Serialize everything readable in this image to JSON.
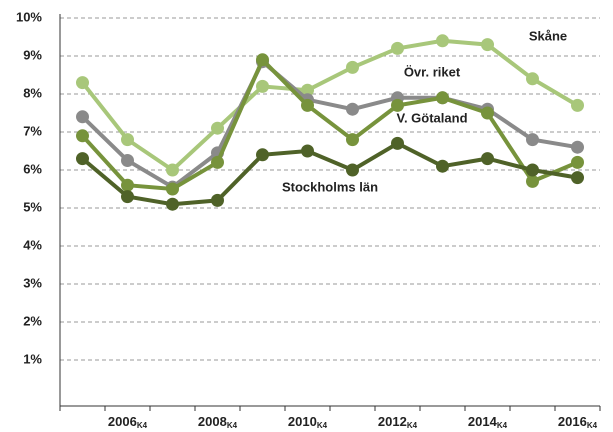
{
  "chart_data": {
    "type": "line",
    "categories": [
      null,
      "2006",
      null,
      "2008",
      null,
      "2010",
      null,
      "2012",
      null,
      "2014",
      null,
      "2016"
    ],
    "category_sub": "K4",
    "ylim": [
      0,
      10
    ],
    "yticks": [
      {
        "value": 1,
        "label": "1%"
      },
      {
        "value": 2,
        "label": "2%"
      },
      {
        "value": 3,
        "label": "3%"
      },
      {
        "value": 4,
        "label": "4%"
      },
      {
        "value": 5,
        "label": "5%"
      },
      {
        "value": 6,
        "label": "6%"
      },
      {
        "value": 7,
        "label": "7%"
      },
      {
        "value": 8,
        "label": "8%"
      },
      {
        "value": 9,
        "label": "9%"
      },
      {
        "value": 10,
        "label": "10%"
      }
    ],
    "grid": true,
    "series": [
      {
        "name": "Skåne",
        "color": "#a8c77a",
        "values": [
          8.3,
          6.8,
          6.0,
          7.1,
          8.2,
          8.1,
          8.7,
          9.2,
          9.4,
          9.3,
          8.4,
          7.7
        ]
      },
      {
        "name": "Övr. riket",
        "color": "#8a8a8a",
        "values": [
          7.4,
          6.25,
          5.55,
          6.45,
          8.85,
          7.85,
          7.6,
          7.9,
          7.9,
          7.6,
          6.8,
          6.6
        ]
      },
      {
        "name": "V. Götaland",
        "color": "#77933c",
        "values": [
          6.9,
          5.6,
          5.5,
          6.2,
          8.9,
          7.7,
          6.8,
          7.7,
          7.9,
          7.5,
          5.7,
          6.2
        ]
      },
      {
        "name": "Stockholms län",
        "color": "#4f6228",
        "values": [
          6.3,
          5.3,
          5.1,
          5.2,
          6.4,
          6.5,
          6.0,
          6.7,
          6.1,
          6.3,
          6.0,
          5.8
        ]
      }
    ]
  }
}
